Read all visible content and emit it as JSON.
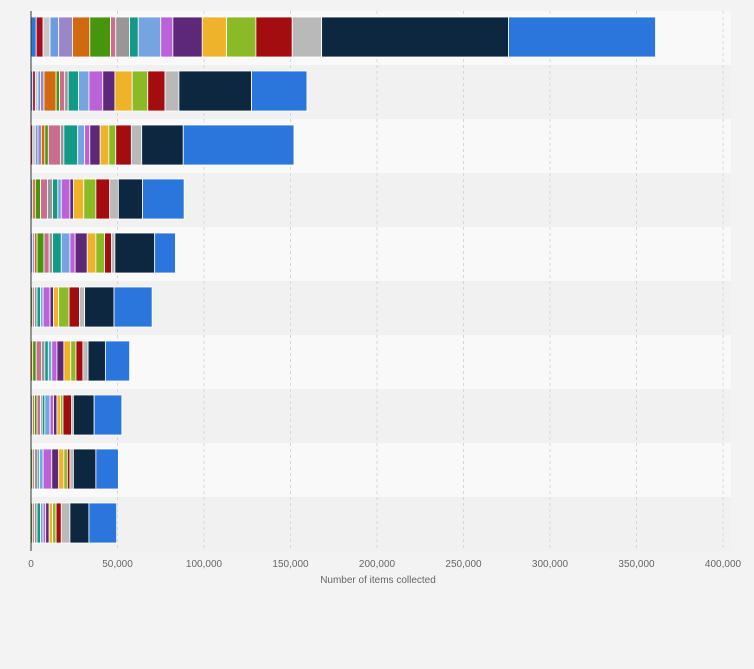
{
  "chart_data": {
    "type": "bar",
    "orientation": "horizontal",
    "stacked": true,
    "xlabel": "Number of items collected",
    "ylabel": "",
    "xlim": [
      0,
      400000
    ],
    "x_ticks": [
      "0",
      "50,000",
      "100,000",
      "150,000",
      "200,000",
      "250,000",
      "300,000",
      "350,000",
      "400,000"
    ],
    "x_tick_values": [
      0,
      50000,
      100000,
      150000,
      200000,
      250000,
      300000,
      350000,
      400000
    ],
    "grid": "vertical dashed",
    "legend": "none",
    "categories": [
      "",
      "",
      "",
      "",
      "",
      "",
      "",
      "",
      "",
      ""
    ],
    "segment_colors": [
      "#a10f1c",
      "#c7c7c7",
      "#6e9be0",
      "#9a86c8",
      "#d0690f",
      "#46960d",
      "#c86e8e",
      "#979797",
      "#139a86",
      "#75a5e0",
      "#bb62d8",
      "#5e2878",
      "#eeb32b",
      "#8abb26",
      "#a30d10",
      "#b9b9b9",
      "#0e2740",
      "#2a76dd"
    ],
    "series_values": [
      [
        3000,
        4000,
        4000,
        5000,
        8000,
        10000,
        12000,
        3000,
        8000,
        5000,
        13000,
        7000,
        17000,
        14000,
        17000,
        21000,
        17000,
        108000,
        85000
      ],
      [
        1000,
        1500,
        1500,
        1500,
        2000,
        7000,
        2000,
        3000,
        2000,
        6000,
        6000,
        8000,
        7000,
        10000,
        9000,
        10000,
        8000,
        42000,
        32000
      ],
      [
        1000,
        1500,
        1500,
        2000,
        2000,
        2000,
        7000,
        2000,
        8000,
        4000,
        3000,
        6000,
        5000,
        4000,
        9000,
        6000,
        24000,
        64000
      ],
      [
        1000,
        1500,
        3000,
        4000,
        3000,
        3000,
        2000,
        5000,
        2000,
        6000,
        7000,
        8000,
        5000,
        14000,
        24000
      ],
      [
        1000,
        1000,
        1500,
        4000,
        3000,
        2000,
        5000,
        5000,
        3000,
        7000,
        5000,
        5000,
        4000,
        2000,
        23000,
        12000
      ],
      [
        1000,
        1000,
        1500,
        2000,
        1500,
        4000,
        2000,
        3000,
        6000,
        6000,
        3000,
        17000,
        22000
      ],
      [
        1000,
        2000,
        3000,
        2000,
        2000,
        2000,
        3000,
        4000,
        4000,
        3000,
        4000,
        3000,
        10000,
        14000
      ],
      [
        1000,
        1000,
        1500,
        2000,
        1000,
        1500,
        3000,
        2000,
        2000,
        2000,
        1500,
        5000,
        1000,
        12000,
        16000
      ],
      [
        1000,
        1000,
        2000,
        1000,
        2000,
        5000,
        4000,
        3000,
        2000,
        1500,
        2000,
        13000,
        13000
      ],
      [
        1000,
        1000,
        1500,
        2000,
        1500,
        1500,
        2000,
        2000,
        2000,
        3000,
        5000,
        11000,
        16000
      ]
    ]
  }
}
